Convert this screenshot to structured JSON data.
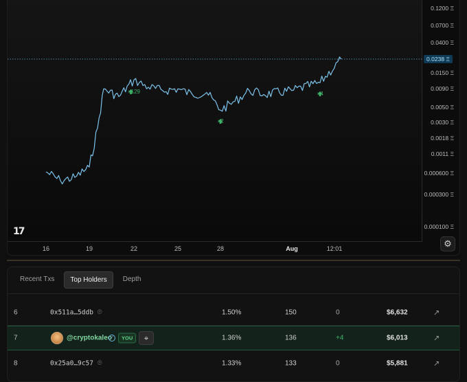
{
  "chart": {
    "y_ticks": [
      "0.1200 Ξ",
      "0.0700 Ξ",
      "0.0400 Ξ",
      "0.0150 Ξ",
      "0.0090 Ξ",
      "0.0050 Ξ",
      "0.0030 Ξ",
      "0.0018 Ξ",
      "0.0011 Ξ",
      "0.000600 Ξ",
      "0.000300 Ξ",
      "0.000100 Ξ"
    ],
    "current_price": "0.0238 Ξ",
    "x_ticks": [
      "16",
      "19",
      "22",
      "25",
      "28",
      "Aug",
      "12:01"
    ],
    "markers": [
      "×129",
      "×2",
      "×4"
    ],
    "logo": "17",
    "line_color": "#7cc4ec",
    "marker_color": "#3fb56b",
    "settings_icon": "gear-icon"
  },
  "chart_data": {
    "type": "line",
    "x_tick_labels": [
      "16",
      "19",
      "22",
      "25",
      "28",
      "Aug",
      "12:01"
    ],
    "y_scale": "log",
    "y_unit": "Ξ",
    "current_value": 0.0238,
    "points": [
      [
        "16",
        0.0006
      ],
      [
        "17",
        0.00045
      ],
      [
        "18",
        0.0005
      ],
      [
        "19",
        0.0007
      ],
      [
        "19.5",
        0.0025
      ],
      [
        "20",
        0.009
      ],
      [
        "21",
        0.007
      ],
      [
        "22",
        0.012
      ],
      [
        "23",
        0.0095
      ],
      [
        "24",
        0.0085
      ],
      [
        "25",
        0.009
      ],
      [
        "26",
        0.0075
      ],
      [
        "27",
        0.008
      ],
      [
        "28",
        0.0045
      ],
      [
        "29",
        0.006
      ],
      [
        "30",
        0.0085
      ],
      [
        "31",
        0.0075
      ],
      [
        "Aug",
        0.0085
      ],
      [
        "Aug 2",
        0.011
      ],
      [
        "12:01",
        0.0238
      ]
    ],
    "trade_markers": [
      {
        "label": "×129",
        "x": "22"
      },
      {
        "label": "×2",
        "x": "28"
      },
      {
        "label": "×4",
        "x": "Aug 2"
      }
    ]
  },
  "tabs": [
    "Recent Txs",
    "Top Holders",
    "Depth"
  ],
  "active_tab": "Top Holders",
  "holders": [
    {
      "rank": "6",
      "address": "0x511a…5ddb",
      "percent": "1.50%",
      "amount": "150",
      "change": "0",
      "value": "$6,632"
    },
    {
      "rank": "7",
      "name": "@cryptokaleo",
      "badge": "YOU",
      "percent": "1.36%",
      "amount": "136",
      "change": "+4",
      "value": "$6,013"
    },
    {
      "rank": "8",
      "address": "0x25a0…9c57",
      "percent": "1.33%",
      "amount": "133",
      "change": "0",
      "value": "$5,881"
    }
  ],
  "icons": {
    "copy": "copy-icon",
    "external": "external-link-icon",
    "verified": "verified-icon",
    "target": "target-icon"
  }
}
